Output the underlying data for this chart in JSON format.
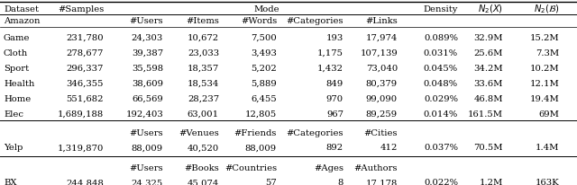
{
  "rows": [
    {
      "label": "Game",
      "samples": "231,780",
      "c1": "24,303",
      "c2": "10,672",
      "c3": "7,500",
      "c4": "193",
      "c5": "17,974",
      "density": "0.089%",
      "n2x": "32.9M",
      "n2b": "15.2M"
    },
    {
      "label": "Cloth",
      "samples": "278,677",
      "c1": "39,387",
      "c2": "23,033",
      "c3": "3,493",
      "c4": "1,175",
      "c5": "107,139",
      "density": "0.031%",
      "n2x": "25.6M",
      "n2b": "7.3M"
    },
    {
      "label": "Sport",
      "samples": "296,337",
      "c1": "35,598",
      "c2": "18,357",
      "c3": "5,202",
      "c4": "1,432",
      "c5": "73,040",
      "density": "0.045%",
      "n2x": "34.2M",
      "n2b": "10.2M"
    },
    {
      "label": "Health",
      "samples": "346,355",
      "c1": "38,609",
      "c2": "18,534",
      "c3": "5,889",
      "c4": "849",
      "c5": "80,379",
      "density": "0.048%",
      "n2x": "33.6M",
      "n2b": "12.1M"
    },
    {
      "label": "Home",
      "samples": "551,682",
      "c1": "66,569",
      "c2": "28,237",
      "c3": "6,455",
      "c4": "970",
      "c5": "99,090",
      "density": "0.029%",
      "n2x": "46.8M",
      "n2b": "19.4M"
    },
    {
      "label": "Elec",
      "samples": "1,689,188",
      "c1": "192,403",
      "c2": "63,001",
      "c3": "12,805",
      "c4": "967",
      "c5": "89,259",
      "density": "0.014%",
      "n2x": "161.5M",
      "n2b": "69M"
    }
  ],
  "yelp_row": {
    "label": "Yelp",
    "samples": "1,319,870",
    "c1": "88,009",
    "c2": "40,520",
    "c3": "88,009",
    "c4": "892",
    "c5": "412",
    "density": "0.037%",
    "n2x": "70.5M",
    "n2b": "1.4M"
  },
  "bx_row": {
    "label": "BX",
    "samples": "244,848",
    "c1": "24,325",
    "c2": "45,074",
    "c3": "57",
    "c4": "8",
    "c5": "17,178",
    "density": "0.022%",
    "n2x": "1.2M",
    "n2b": "163K"
  },
  "bg_color": "#ffffff",
  "font_size": 7.2,
  "sub_cols_amazon": [
    "#Users",
    "#Items",
    "#Words",
    "#Categories",
    "#Links"
  ],
  "sub_cols_yelp": [
    "#Users",
    "#Venues",
    "#Friends",
    "#Categories",
    "#Cities"
  ],
  "sub_cols_bx": [
    "#Users",
    "#Books",
    "#Countries",
    "#Ages",
    "#Authors"
  ]
}
